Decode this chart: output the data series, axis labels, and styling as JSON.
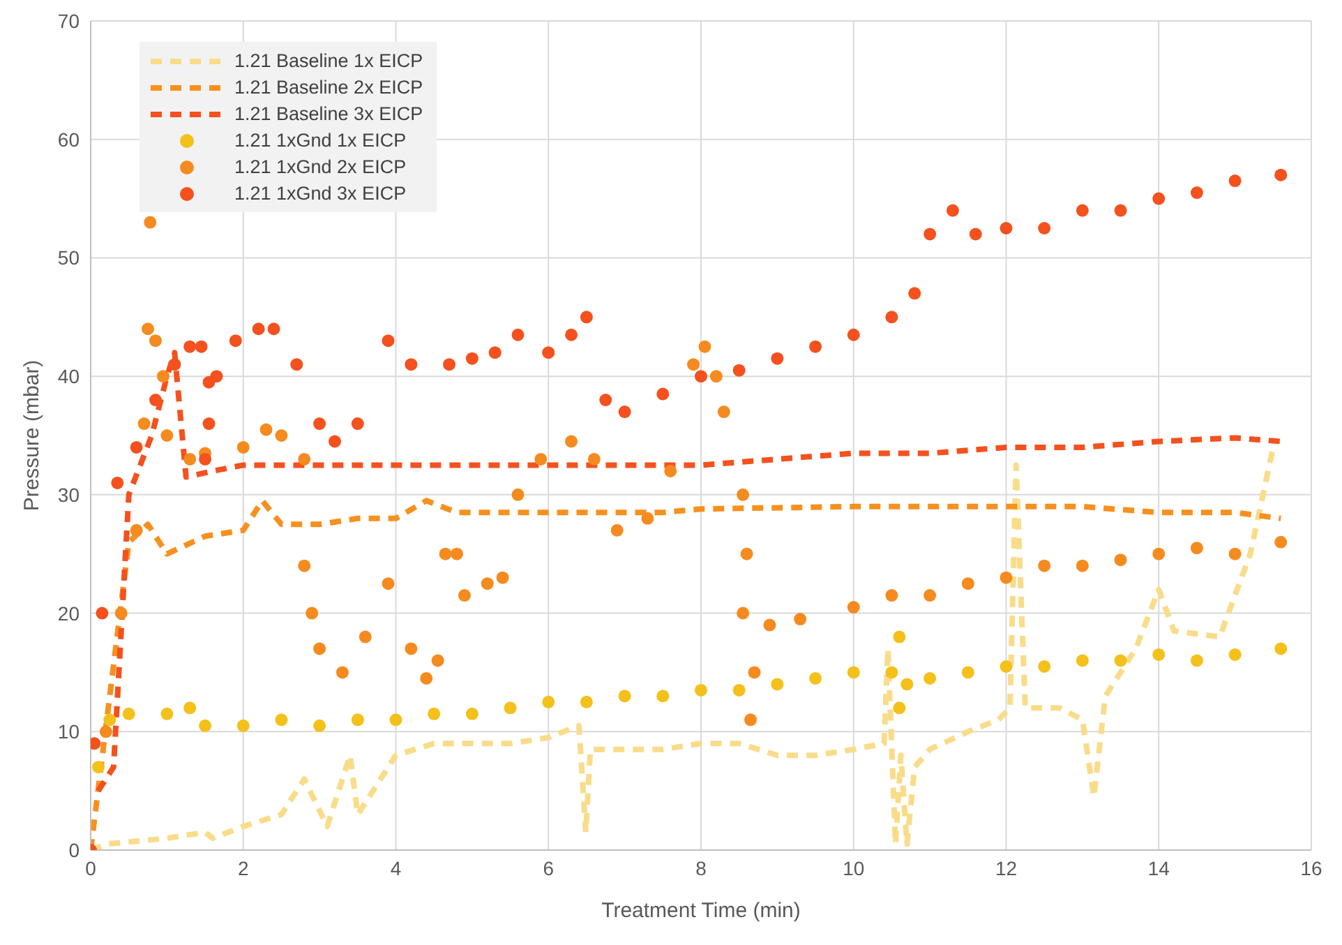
{
  "chart_data": {
    "type": "line",
    "xlabel": "Treatment Time (min)",
    "ylabel": "Pressure (mbar)",
    "xlim": [
      0,
      16
    ],
    "xticks": [
      0,
      2,
      4,
      6,
      8,
      10,
      12,
      14,
      16
    ],
    "ylim": [
      0,
      70
    ],
    "yticks": [
      0,
      10,
      20,
      30,
      40,
      50,
      60,
      70
    ],
    "grid": true,
    "legend": "top left",
    "series": [
      {
        "name": "1.21 Baseline 1x EICP",
        "line_style": "dashed",
        "color": "#f9dc8a",
        "x": [
          0,
          0.2,
          1,
          1.5,
          1.6,
          2,
          2.5,
          2.8,
          3.1,
          3.4,
          3.5,
          4,
          4.5,
          5,
          5.5,
          6,
          6.4,
          6.49,
          6.55,
          7,
          7.5,
          8,
          8.5,
          9,
          9.5,
          10,
          10.4,
          10.45,
          10.55,
          10.62,
          10.7,
          10.8,
          11,
          11.5,
          11.9,
          12.05,
          12.13,
          12.25,
          12.7,
          13,
          13.15,
          13.3,
          13.7,
          14,
          14.2,
          14.8,
          15.2,
          15.5
        ],
        "values": [
          0,
          0.5,
          1,
          1.5,
          1,
          2,
          3,
          6,
          2,
          8,
          3,
          8,
          9,
          9,
          9,
          9.5,
          10.5,
          1.5,
          8.5,
          8.5,
          8.5,
          9,
          9,
          8,
          8,
          8.5,
          9,
          17,
          0.5,
          8,
          0.5,
          7,
          8.5,
          10,
          11,
          12,
          32.5,
          12,
          12,
          11,
          4.5,
          13,
          17,
          22,
          18.5,
          18,
          25,
          34
        ]
      },
      {
        "name": "1.21 Baseline 2x EICP",
        "line_style": "dashed",
        "color": "#f7901e",
        "x": [
          0,
          0.5,
          0.75,
          1,
          1.5,
          2,
          2.25,
          2.5,
          3,
          3.5,
          4,
          4.4,
          4.8,
          5,
          6,
          7,
          7.5,
          8,
          10,
          12,
          13,
          14,
          15,
          15.6
        ],
        "values": [
          0,
          26,
          27.5,
          25,
          26.5,
          27,
          29.5,
          27.5,
          27.5,
          28,
          28,
          29.5,
          28.5,
          28.5,
          28.5,
          28.5,
          28.5,
          28.8,
          29,
          29,
          29,
          28.5,
          28.5,
          28
        ]
      },
      {
        "name": "1.21 Baseline 3x EICP",
        "line_style": "dashed",
        "color": "#f4511e",
        "x": [
          0.1,
          0.3,
          0.5,
          0.8,
          1,
          1.1,
          1.25,
          1.6,
          2,
          3,
          4,
          5,
          6,
          7,
          8,
          9,
          10,
          11,
          12,
          13,
          14,
          15,
          15.6
        ],
        "values": [
          5,
          7,
          30,
          35,
          40,
          42,
          31.5,
          32,
          32.5,
          32.5,
          32.5,
          32.5,
          32.5,
          32.5,
          32.5,
          33,
          33.5,
          33.5,
          34,
          34,
          34.5,
          34.8,
          34.5
        ]
      },
      {
        "name": "1.21 1xGnd 1x EICP",
        "type": "scatter",
        "marker": "circle",
        "color": "#f4c01a",
        "x": [
          0.1,
          0.25,
          0.5,
          1,
          1.3,
          1.5,
          2,
          2.5,
          3,
          3.5,
          4,
          4.5,
          5,
          5.5,
          6,
          6.5,
          7,
          7.5,
          8,
          8.5,
          9,
          9.5,
          10,
          10.5,
          10.6,
          10.6,
          10.7,
          11,
          11.5,
          12,
          12.5,
          13,
          13.5,
          14,
          14.5,
          15,
          15.6
        ],
        "values": [
          7,
          11,
          11.5,
          11.5,
          12,
          10.5,
          10.5,
          11,
          10.5,
          11,
          11,
          11.5,
          11.5,
          12,
          12.5,
          12.5,
          13,
          13,
          13.5,
          13.5,
          14,
          14.5,
          15,
          15,
          18,
          12,
          14,
          14.5,
          15,
          15.5,
          15.5,
          16,
          16,
          16.5,
          16,
          16.5,
          17
        ]
      },
      {
        "name": "1.21 1xGnd 2x EICP",
        "type": "scatter",
        "marker": "circle",
        "color": "#f58b1f",
        "x": [
          0.2,
          0.4,
          0.6,
          0.7,
          0.75,
          0.78,
          0.85,
          0.95,
          1,
          1.3,
          1.5,
          2,
          2.3,
          2.5,
          2.8,
          2.8,
          2.9,
          3,
          3.3,
          3.6,
          3.9,
          4.2,
          4.4,
          4.55,
          4.65,
          4.8,
          4.9,
          5.2,
          5.4,
          5.6,
          5.9,
          6.3,
          6.6,
          6.9,
          7.3,
          7.6,
          7.9,
          8.05,
          8.2,
          8.3,
          8.55,
          8.6,
          8.55,
          8.65,
          8.7,
          8.9,
          9.3,
          10,
          10.5,
          11,
          11.5,
          12,
          12.5,
          13,
          13.5,
          14,
          14.5,
          15,
          15.6
        ],
        "values": [
          10,
          20,
          27,
          36,
          44,
          53,
          43,
          40,
          35,
          33,
          33.5,
          34,
          35.5,
          35,
          33,
          24,
          20,
          17,
          15,
          18,
          22.5,
          17,
          14.5,
          16,
          25,
          25,
          21.5,
          22.5,
          23,
          30,
          33,
          34.5,
          33,
          27,
          28,
          32,
          41,
          42.5,
          40,
          37,
          30,
          25,
          20,
          11,
          15,
          19,
          19.5,
          20.5,
          21.5,
          21.5,
          22.5,
          23,
          24,
          24,
          24.5,
          25,
          25.5,
          25,
          26
        ]
      },
      {
        "name": "1.21 1xGnd 3x EICP",
        "type": "scatter",
        "marker": "circle",
        "color": "#f4511e",
        "x": [
          0,
          0.05,
          0.15,
          0.35,
          0.6,
          0.85,
          1.1,
          1.3,
          1.45,
          1.55,
          1.55,
          1.5,
          1.65,
          1.9,
          2.2,
          2.4,
          2.7,
          3,
          3.2,
          3.5,
          3.9,
          4.2,
          4.7,
          5,
          5.3,
          5.6,
          6,
          6.3,
          6.5,
          6.75,
          7,
          7.5,
          8,
          8.5,
          9,
          9.5,
          10,
          10.5,
          10.8,
          11,
          11.3,
          11.6,
          12,
          12.5,
          13,
          13.5,
          14,
          14.5,
          15,
          15.6
        ],
        "values": [
          0,
          9,
          20,
          31,
          34,
          38,
          41,
          42.5,
          42.5,
          39.5,
          36,
          33,
          40,
          43,
          44,
          44,
          41,
          36,
          34.5,
          36,
          43,
          41,
          41,
          41.5,
          42,
          43.5,
          42,
          43.5,
          45,
          38,
          37,
          38.5,
          40,
          40.5,
          41.5,
          42.5,
          43.5,
          45,
          47,
          52,
          54,
          52,
          52.5,
          52.5,
          54,
          54,
          55,
          55.5,
          56.5,
          57
        ]
      }
    ]
  }
}
